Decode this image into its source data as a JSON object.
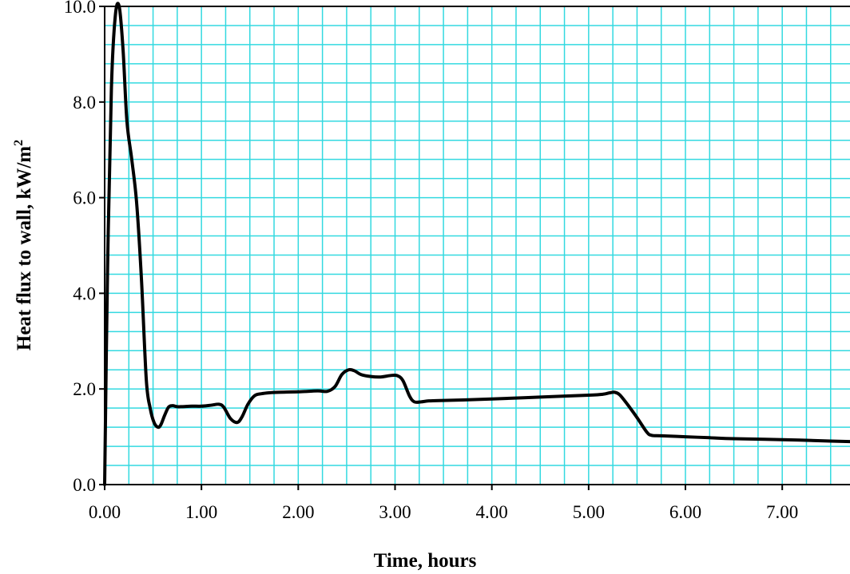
{
  "chart_data": {
    "type": "line",
    "title": "",
    "xlabel": "Time, hours",
    "ylabel_main": "Heat flux to wall, kW/m",
    "ylabel_sup": "2",
    "xlim": [
      0,
      7.7
    ],
    "ylim": [
      0,
      10
    ],
    "x_ticks": [
      0,
      1,
      2,
      3,
      4,
      5,
      6,
      7
    ],
    "x_tick_labels": [
      "0.00",
      "1.00",
      "2.00",
      "3.00",
      "4.00",
      "5.00",
      "6.00",
      "7.00"
    ],
    "y_ticks": [
      0,
      2,
      4,
      6,
      8,
      10
    ],
    "y_tick_labels": [
      "0.0",
      "2.0",
      "4.0",
      "6.0",
      "8.0",
      "10.0"
    ],
    "grid": true,
    "grid_x_step": 0.25,
    "grid_y_step": 0.4,
    "colors": {
      "grid": "#33d9e0",
      "line": "#000000",
      "axis": "#000000"
    },
    "series": [
      {
        "x": [
          0.0,
          0.03,
          0.07,
          0.11,
          0.15,
          0.19,
          0.23,
          0.28,
          0.33,
          0.38,
          0.43,
          0.47,
          0.51,
          0.55,
          0.58,
          0.62,
          0.66,
          0.7,
          0.75,
          0.8,
          0.9,
          1.0,
          1.1,
          1.18,
          1.23,
          1.3,
          1.37,
          1.42,
          1.48,
          1.55,
          1.62,
          1.7,
          1.8,
          2.0,
          2.2,
          2.3,
          2.38,
          2.45,
          2.52,
          2.58,
          2.65,
          2.75,
          2.85,
          2.95,
          3.02,
          3.08,
          3.15,
          3.2,
          3.27,
          3.35,
          3.5,
          3.7,
          4.0,
          4.5,
          5.0,
          5.15,
          5.22,
          5.27,
          5.32,
          5.4,
          5.5,
          5.6,
          5.65,
          5.75,
          6.0,
          6.25,
          6.5,
          7.0,
          7.5,
          7.7
        ],
        "y": [
          0.0,
          4.5,
          8.3,
          9.8,
          10.0,
          9.1,
          7.6,
          6.8,
          5.9,
          4.3,
          2.2,
          1.6,
          1.3,
          1.2,
          1.25,
          1.45,
          1.62,
          1.65,
          1.63,
          1.63,
          1.64,
          1.64,
          1.66,
          1.68,
          1.62,
          1.38,
          1.3,
          1.42,
          1.68,
          1.86,
          1.9,
          1.92,
          1.93,
          1.94,
          1.96,
          1.95,
          2.05,
          2.3,
          2.4,
          2.38,
          2.3,
          2.26,
          2.25,
          2.28,
          2.28,
          2.18,
          1.85,
          1.73,
          1.73,
          1.75,
          1.76,
          1.77,
          1.79,
          1.83,
          1.87,
          1.89,
          1.92,
          1.93,
          1.88,
          1.68,
          1.4,
          1.1,
          1.03,
          1.02,
          1.0,
          0.98,
          0.96,
          0.94,
          0.91,
          0.9
        ]
      }
    ]
  }
}
